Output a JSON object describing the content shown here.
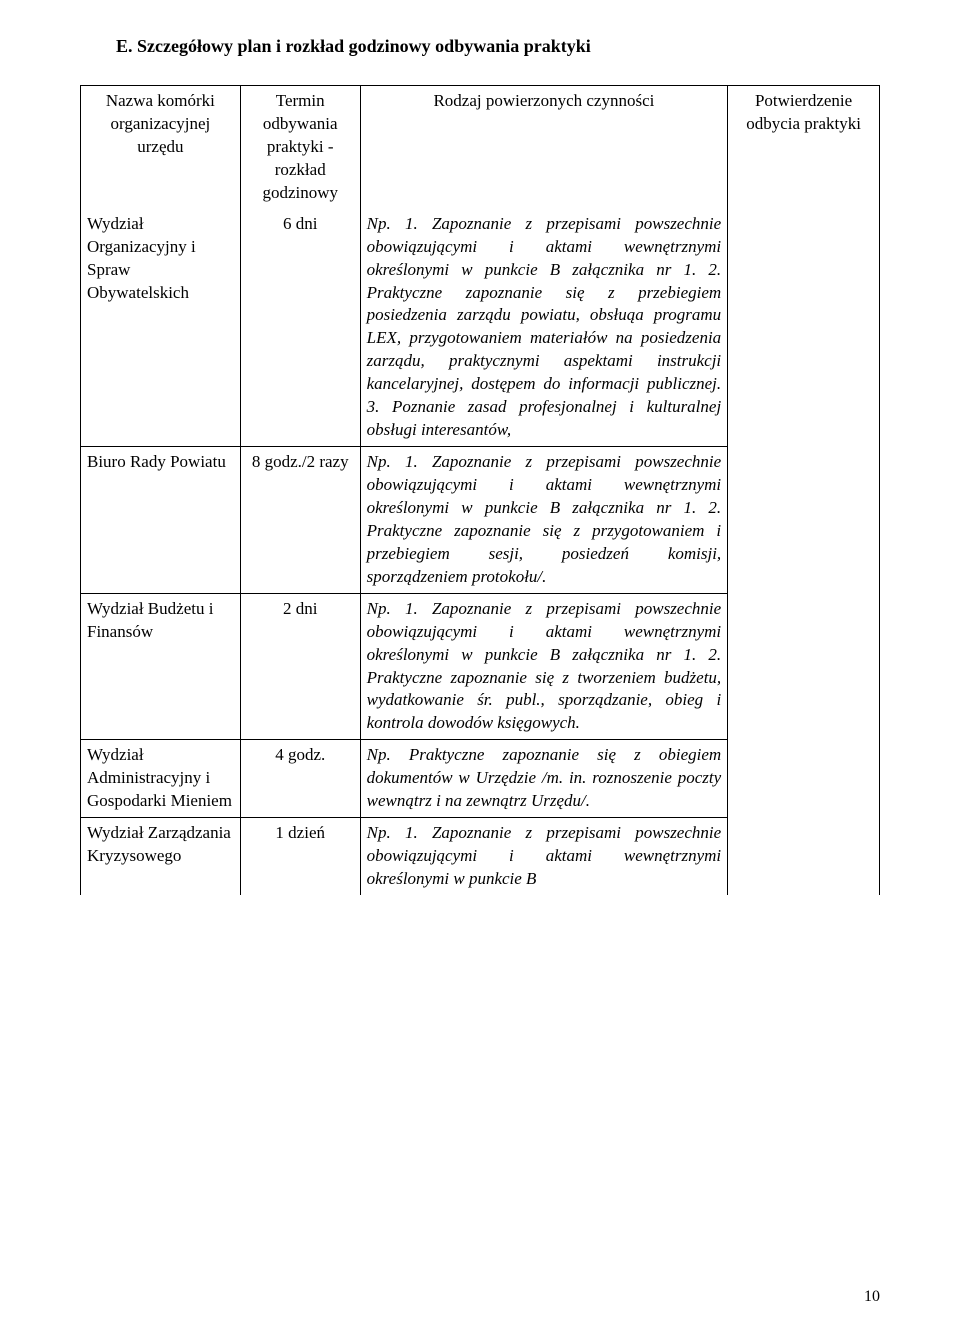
{
  "title": "E. Szczegółowy plan i rozkład godzinowy odbywania praktyki",
  "headers": {
    "col1": "Nazwa komórki organizacyjnej urzędu",
    "col2": "Termin odbywania praktyki - rozkład godzinowy",
    "col3": "Rodzaj powierzonych czynności",
    "col4": "Potwierdzenie odbycia praktyki"
  },
  "rows": [
    {
      "unit": "Wydział Organizacyjny i Spraw Obywatelskich",
      "time": "6 dni",
      "activity": "Np. 1. Zapoznanie z przepisami powszechnie obowiązującymi i aktami wewnętrznymi określonymi w punkcie B załącznika nr 1.\n2. Praktyczne zapoznanie się z przebiegiem posiedzenia zarządu powiatu, obsłuąa programu LEX, przygotowaniem materiałów na posiedzenia zarządu, praktycznymi aspektami instrukcji kancelaryjnej, dostępem do informacji publicznej.\n3. Poznanie zasad profesjonalnej i kulturalnej obsługi interesantów,"
    },
    {
      "unit": "Biuro Rady Powiatu",
      "time": "8 godz./2 razy",
      "activity": "Np. 1. Zapoznanie z przepisami powszechnie obowiązującymi i aktami wewnętrznymi określonymi w punkcie B załącznika nr 1.\n2. Praktyczne zapoznanie się z przygotowaniem i przebiegiem sesji, posiedzeń komisji, sporządzeniem protokołu/."
    },
    {
      "unit": "Wydział Budżetu i Finansów",
      "time": "2 dni",
      "activity": "Np. 1. Zapoznanie z przepisami powszechnie obowiązującymi i aktami wewnętrznymi określonymi w punkcie B załącznika nr 1.\n2. Praktyczne zapoznanie się z tworzeniem budżetu, wydatkowanie śr. publ., sporządzanie, obieg i kontrola dowodów księgowych."
    },
    {
      "unit": "Wydział Administracyjny i Gospodarki Mieniem",
      "time": "4 godz.",
      "activity": "Np. Praktyczne zapoznanie się z obiegiem dokumentów w Urzędzie /m. in. roznoszenie poczty wewnątrz i na zewnątrz Urzędu/."
    },
    {
      "unit": "Wydział Zarządzania Kryzysowego",
      "time": "1 dzień",
      "activity": "Np. 1. Zapoznanie z przepisami powszechnie obowiązującymi i aktami wewnętrznymi określonymi w punkcie B"
    }
  ],
  "page_number": "10"
}
